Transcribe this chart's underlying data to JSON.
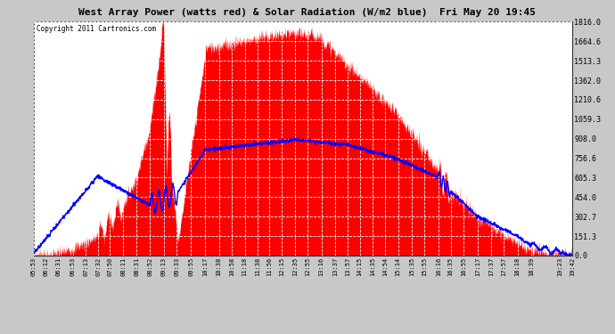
{
  "title": "West Array Power (watts red) & Solar Radiation (W/m2 blue)  Fri May 20 19:45",
  "copyright": "Copyright 2011 Cartronics.com",
  "bg_color": "#c8c8c8",
  "plot_bg_color": "#ffffff",
  "y_ticks": [
    0.0,
    151.3,
    302.7,
    454.0,
    605.3,
    756.6,
    908.0,
    1059.3,
    1210.6,
    1362.0,
    1513.3,
    1664.6,
    1816.0
  ],
  "x_labels": [
    "05:53",
    "06:12",
    "06:31",
    "06:53",
    "07:13",
    "07:32",
    "07:50",
    "08:11",
    "08:31",
    "08:52",
    "09:13",
    "09:33",
    "09:55",
    "10:17",
    "10:38",
    "10:58",
    "11:18",
    "11:38",
    "11:56",
    "12:15",
    "12:35",
    "12:55",
    "13:16",
    "13:37",
    "13:57",
    "14:15",
    "14:35",
    "14:54",
    "15:14",
    "15:35",
    "15:55",
    "16:16",
    "16:35",
    "16:55",
    "17:17",
    "17:37",
    "17:57",
    "18:18",
    "18:39",
    "19:23",
    "19:42"
  ],
  "ymax": 1816.0,
  "ymin": 0.0,
  "red_color": "#ff0000",
  "blue_color": "#0000ff",
  "grid_color": "#ffffff"
}
